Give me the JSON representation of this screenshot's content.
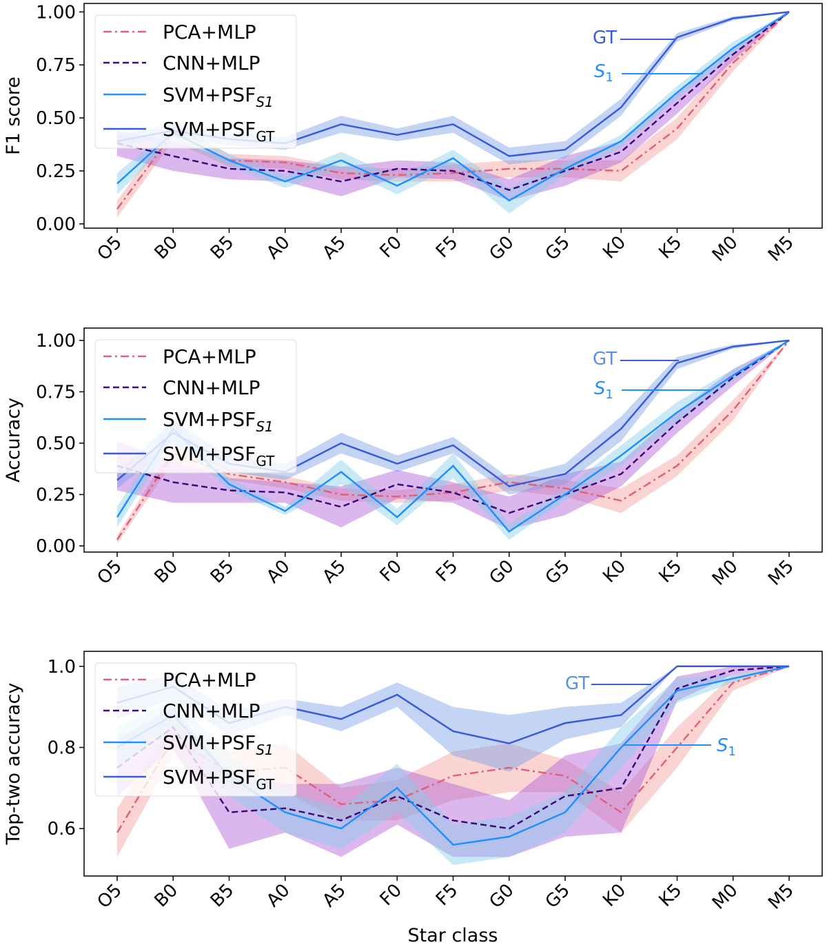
{
  "chart_data": [
    {
      "type": "line",
      "ylabel": "F1 score",
      "xlabel": "",
      "categories": [
        "O5",
        "B0",
        "B5",
        "A0",
        "A5",
        "F0",
        "F5",
        "G0",
        "G5",
        "K0",
        "K5",
        "M0",
        "M5"
      ],
      "ylim": [
        -0.02,
        1.04
      ],
      "yticks": [
        "0.00",
        "0.25",
        "0.50",
        "0.75",
        "1.00"
      ],
      "series": [
        {
          "name": "PCA+MLP",
          "sub": "",
          "style": "dashdot",
          "color": "#e0607e",
          "band_color": "#f4a09c",
          "values": [
            0.07,
            0.43,
            0.3,
            0.29,
            0.24,
            0.23,
            0.24,
            0.26,
            0.26,
            0.25,
            0.45,
            0.76,
            1.0
          ],
          "band": [
            0.04,
            0.04,
            0.03,
            0.03,
            0.03,
            0.03,
            0.04,
            0.04,
            0.04,
            0.05,
            0.05,
            0.04,
            0.0
          ]
        },
        {
          "name": "CNN+MLP",
          "sub": "",
          "style": "dashed",
          "color": "#3d0a7a",
          "band_color": "#b060d8",
          "values": [
            0.38,
            0.32,
            0.26,
            0.25,
            0.2,
            0.26,
            0.25,
            0.16,
            0.25,
            0.34,
            0.57,
            0.8,
            1.0
          ],
          "band": [
            0.06,
            0.07,
            0.05,
            0.05,
            0.07,
            0.04,
            0.04,
            0.05,
            0.07,
            0.05,
            0.05,
            0.03,
            0.0
          ]
        },
        {
          "name": "SVM+PSF",
          "sub": "S1",
          "style": "solid",
          "color": "#1e90ff",
          "band_color": "#87ceeb",
          "values": [
            0.19,
            0.43,
            0.3,
            0.2,
            0.3,
            0.18,
            0.31,
            0.11,
            0.26,
            0.39,
            0.62,
            0.83,
            1.0
          ],
          "band": [
            0.05,
            0.03,
            0.03,
            0.03,
            0.04,
            0.04,
            0.04,
            0.06,
            0.03,
            0.03,
            0.03,
            0.03,
            0.0
          ]
        },
        {
          "name": "SVM+PSF",
          "sub": "GT",
          "style": "solid",
          "color": "#3a5bd9",
          "band_color": "#7aa0e8",
          "values": [
            0.39,
            0.44,
            0.4,
            0.38,
            0.47,
            0.42,
            0.47,
            0.32,
            0.35,
            0.55,
            0.88,
            0.97,
            1.0
          ],
          "band": [
            0.03,
            0.03,
            0.03,
            0.03,
            0.04,
            0.03,
            0.04,
            0.04,
            0.04,
            0.04,
            0.02,
            0.01,
            0.0
          ]
        }
      ],
      "annotations": [
        {
          "text": "GT",
          "sub": "",
          "color": "#3a5bd9"
        },
        {
          "text": "S",
          "sub": "1",
          "color": "#1e90ff"
        }
      ]
    },
    {
      "type": "line",
      "ylabel": "Accuracy",
      "xlabel": "",
      "categories": [
        "O5",
        "B0",
        "B5",
        "A0",
        "A5",
        "F0",
        "F5",
        "G0",
        "G5",
        "K0",
        "K5",
        "M0",
        "M5"
      ],
      "ylim": [
        -0.03,
        1.06
      ],
      "yticks": [
        "0.00",
        "0.25",
        "0.50",
        "0.75",
        "1.00"
      ],
      "series": [
        {
          "name": "PCA+MLP",
          "sub": "",
          "style": "dashdot",
          "color": "#e0607e",
          "band_color": "#f4a09c",
          "values": [
            0.03,
            0.45,
            0.35,
            0.31,
            0.25,
            0.24,
            0.26,
            0.31,
            0.28,
            0.22,
            0.39,
            0.66,
            1.0
          ],
          "band": [
            0.02,
            0.04,
            0.03,
            0.03,
            0.03,
            0.03,
            0.04,
            0.04,
            0.04,
            0.06,
            0.05,
            0.05,
            0.0
          ]
        },
        {
          "name": "CNN+MLP",
          "sub": "",
          "style": "dashed",
          "color": "#3d0a7a",
          "band_color": "#b060d8",
          "values": [
            0.39,
            0.31,
            0.27,
            0.26,
            0.19,
            0.3,
            0.26,
            0.16,
            0.25,
            0.35,
            0.6,
            0.82,
            1.0
          ],
          "band": [
            0.12,
            0.1,
            0.06,
            0.05,
            0.1,
            0.07,
            0.05,
            0.08,
            0.1,
            0.06,
            0.05,
            0.04,
            0.0
          ]
        },
        {
          "name": "SVM+PSF",
          "sub": "S1",
          "style": "solid",
          "color": "#1e90ff",
          "band_color": "#87ceeb",
          "values": [
            0.14,
            0.57,
            0.3,
            0.17,
            0.36,
            0.14,
            0.39,
            0.07,
            0.25,
            0.44,
            0.65,
            0.83,
            1.0
          ],
          "band": [
            0.05,
            0.05,
            0.03,
            0.02,
            0.06,
            0.04,
            0.06,
            0.04,
            0.03,
            0.05,
            0.05,
            0.03,
            0.0
          ]
        },
        {
          "name": "SVM+PSF",
          "sub": "GT",
          "style": "solid",
          "color": "#3a5bd9",
          "band_color": "#7aa0e8",
          "values": [
            0.32,
            0.55,
            0.4,
            0.36,
            0.5,
            0.4,
            0.49,
            0.29,
            0.35,
            0.57,
            0.89,
            0.97,
            1.0
          ],
          "band": [
            0.04,
            0.06,
            0.04,
            0.04,
            0.05,
            0.04,
            0.04,
            0.04,
            0.05,
            0.06,
            0.03,
            0.01,
            0.0
          ]
        }
      ],
      "annotations": [
        {
          "text": "GT",
          "sub": "",
          "color": "#5b8ee6"
        },
        {
          "text": "S",
          "sub": "1",
          "color": "#1e90ff"
        }
      ]
    },
    {
      "type": "line",
      "ylabel": "Top-two accuracy",
      "xlabel": "Star class",
      "categories": [
        "O5",
        "B0",
        "B5",
        "A0",
        "A5",
        "F0",
        "F5",
        "G0",
        "G5",
        "K0",
        "K5",
        "M0",
        "M5"
      ],
      "ylim": [
        0.483,
        1.037
      ],
      "yticks": [
        "0.6",
        "0.8",
        "1.0"
      ],
      "series": [
        {
          "name": "PCA+MLP",
          "sub": "",
          "style": "dashdot",
          "color": "#e0607e",
          "band_color": "#f4a09c",
          "values": [
            0.59,
            0.82,
            0.74,
            0.75,
            0.66,
            0.67,
            0.73,
            0.75,
            0.73,
            0.64,
            0.8,
            0.96,
            1.0
          ],
          "band": [
            0.06,
            0.04,
            0.05,
            0.06,
            0.04,
            0.05,
            0.06,
            0.06,
            0.04,
            0.05,
            0.05,
            0.02,
            0.0
          ]
        },
        {
          "name": "CNN+MLP",
          "sub": "",
          "style": "dashed",
          "color": "#3d0a7a",
          "band_color": "#b060d8",
          "values": [
            0.75,
            0.85,
            0.64,
            0.65,
            0.62,
            0.68,
            0.62,
            0.6,
            0.68,
            0.7,
            0.945,
            0.99,
            1.0
          ],
          "band": [
            0.07,
            0.05,
            0.09,
            0.06,
            0.09,
            0.07,
            0.09,
            0.07,
            0.1,
            0.11,
            0.03,
            0.01,
            0.0
          ]
        },
        {
          "name": "SVM+PSF",
          "sub": "S1",
          "style": "solid",
          "color": "#1e90ff",
          "band_color": "#87ceeb",
          "values": [
            0.8,
            0.88,
            0.73,
            0.64,
            0.6,
            0.7,
            0.56,
            0.58,
            0.64,
            0.8,
            0.94,
            0.97,
            1.0
          ],
          "band": [
            0.05,
            0.04,
            0.05,
            0.05,
            0.05,
            0.06,
            0.05,
            0.05,
            0.05,
            0.05,
            0.03,
            0.01,
            0.0
          ]
        },
        {
          "name": "SVM+PSF",
          "sub": "GT",
          "style": "solid",
          "color": "#3a5bd9",
          "band_color": "#7aa0e8",
          "values": [
            0.91,
            0.95,
            0.86,
            0.9,
            0.87,
            0.93,
            0.84,
            0.81,
            0.86,
            0.88,
            1.0,
            1.0,
            1.0
          ],
          "band": [
            0.04,
            0.03,
            0.03,
            0.02,
            0.03,
            0.03,
            0.06,
            0.07,
            0.04,
            0.03,
            0.0,
            0.0,
            0.0
          ]
        }
      ],
      "annotations": [
        {
          "text": "GT",
          "sub": "",
          "color": "#5b8ee6"
        },
        {
          "text": "S",
          "sub": "1",
          "color": "#1e90ff"
        }
      ]
    }
  ]
}
